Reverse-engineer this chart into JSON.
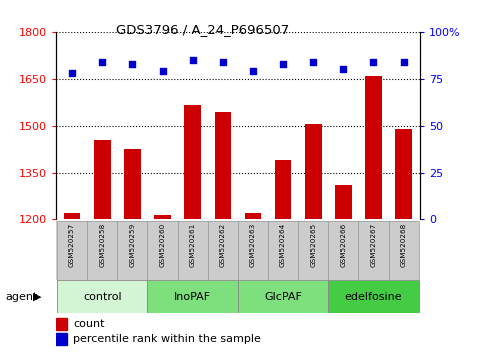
{
  "title": "GDS3796 / A_24_P696507",
  "samples": [
    "GSM520257",
    "GSM520258",
    "GSM520259",
    "GSM520260",
    "GSM520261",
    "GSM520262",
    "GSM520263",
    "GSM520264",
    "GSM520265",
    "GSM520266",
    "GSM520267",
    "GSM520268"
  ],
  "counts": [
    1222,
    1455,
    1425,
    1215,
    1565,
    1545,
    1222,
    1390,
    1505,
    1310,
    1660,
    1490
  ],
  "percentiles": [
    78,
    84,
    83,
    79,
    85,
    84,
    79,
    83,
    84,
    80,
    84,
    84
  ],
  "groups": [
    {
      "label": "control",
      "start": 0,
      "end": 3,
      "color": "#d4f5d4"
    },
    {
      "label": "InoPAF",
      "start": 3,
      "end": 6,
      "color": "#7de07d"
    },
    {
      "label": "GlcPAF",
      "start": 6,
      "end": 9,
      "color": "#7de07d"
    },
    {
      "label": "edelfosine",
      "start": 9,
      "end": 12,
      "color": "#44cc44"
    }
  ],
  "ylim_left": [
    1200,
    1800
  ],
  "ylim_right": [
    0,
    100
  ],
  "yticks_left": [
    1200,
    1350,
    1500,
    1650,
    1800
  ],
  "ytick_labels_left": [
    "1200",
    "1350",
    "1500",
    "1650",
    "1800"
  ],
  "yticks_right": [
    0,
    25,
    50,
    75,
    100
  ],
  "ytick_labels_right": [
    "0",
    "25",
    "50",
    "75",
    "100%"
  ],
  "bar_color": "#cc0000",
  "dot_color": "#0000cc",
  "bar_width": 0.55,
  "grid_color": "#000000",
  "bg_color": "#ffffff",
  "sample_box_color": "#cccccc",
  "legend_count_color": "#cc0000",
  "legend_pct_color": "#0000cc"
}
